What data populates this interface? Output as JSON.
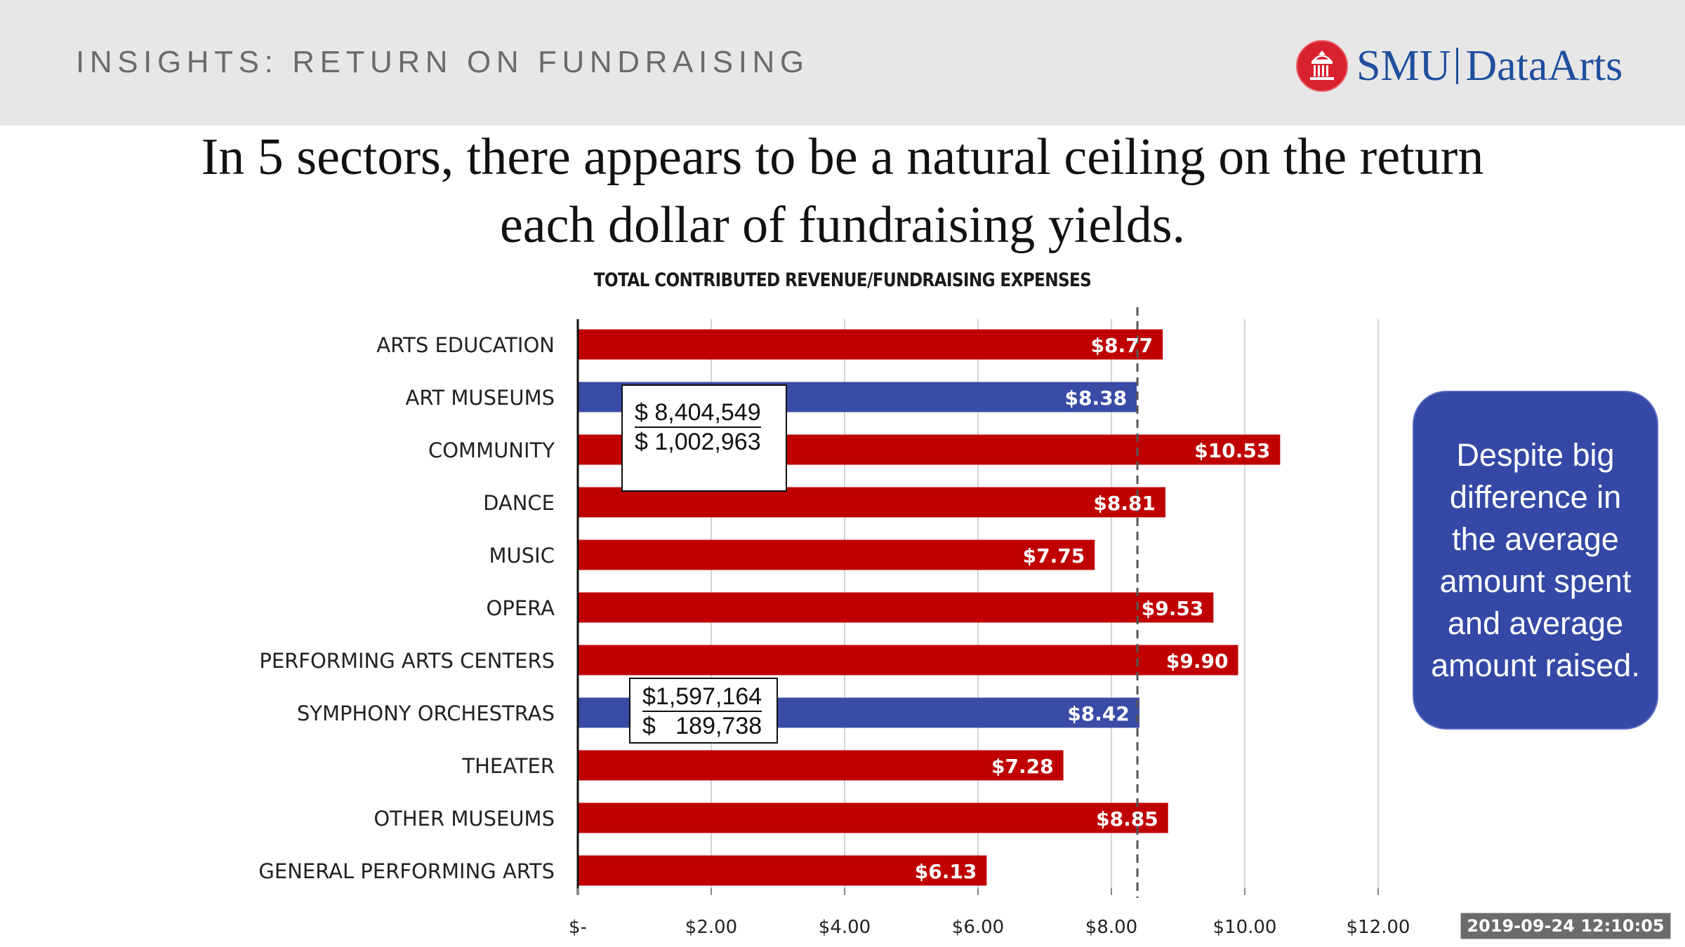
{
  "header": {
    "title": "INSIGHTS: RETURN ON FUNDRAISING",
    "logo": {
      "primary": "SMU",
      "secondary": "DataArts",
      "icon": "building-seal-icon"
    }
  },
  "headline": {
    "line1": "In 5 sectors, there appears to be a natural ceiling on the return",
    "line2": "each dollar of fundraising yields."
  },
  "colors": {
    "red": "#c00000",
    "blue": "#3a4ba6",
    "note_bg": "#3548a5",
    "header_bg": "#e8e7e7"
  },
  "chart_data": {
    "type": "bar",
    "orientation": "horizontal",
    "title": "TOTAL CONTRIBUTED REVENUE/FUNDRAISING EXPENSES",
    "xlabel": "",
    "ylabel": "",
    "xlim": [
      0,
      12
    ],
    "grid": true,
    "categories": [
      "ARTS EDUCATION",
      "ART MUSEUMS",
      "COMMUNITY",
      "DANCE",
      "MUSIC",
      "OPERA",
      "PERFORMING ARTS CENTERS",
      "SYMPHONY ORCHESTRAS",
      "THEATER",
      "OTHER MUSEUMS",
      "GENERAL PERFORMING ARTS"
    ],
    "values": [
      8.77,
      8.38,
      10.53,
      8.81,
      7.75,
      9.53,
      9.9,
      8.42,
      7.28,
      8.85,
      6.13
    ],
    "labels": [
      "$8.77",
      "$8.38",
      "$10.53",
      "$8.81",
      "$7.75",
      "$9.53",
      "$9.90",
      "$8.42",
      "$7.28",
      "$8.85",
      "$6.13"
    ],
    "highlight": [
      false,
      true,
      false,
      false,
      false,
      false,
      false,
      true,
      false,
      false,
      false
    ],
    "x_ticks": [
      0,
      2,
      4,
      6,
      8,
      10,
      12
    ],
    "x_tick_labels": [
      "$-",
      "$2.00",
      "$4.00",
      "$6.00",
      "$8.00",
      "$10.00",
      "$12.00"
    ],
    "reference_line": {
      "value": 8.39,
      "style": "dashed"
    }
  },
  "callouts": [
    {
      "category": "ART MUSEUMS",
      "raised": "$ 8,404,549",
      "spent": "$ 1,002,963"
    },
    {
      "category": "SYMPHONY ORCHESTRAS",
      "raised": "$1,597,164",
      "spent": "$   189,738"
    }
  ],
  "note": {
    "text": "Despite big difference in the average amount spent and average amount raised."
  },
  "timestamp": "2019-09-24  12:10:05"
}
